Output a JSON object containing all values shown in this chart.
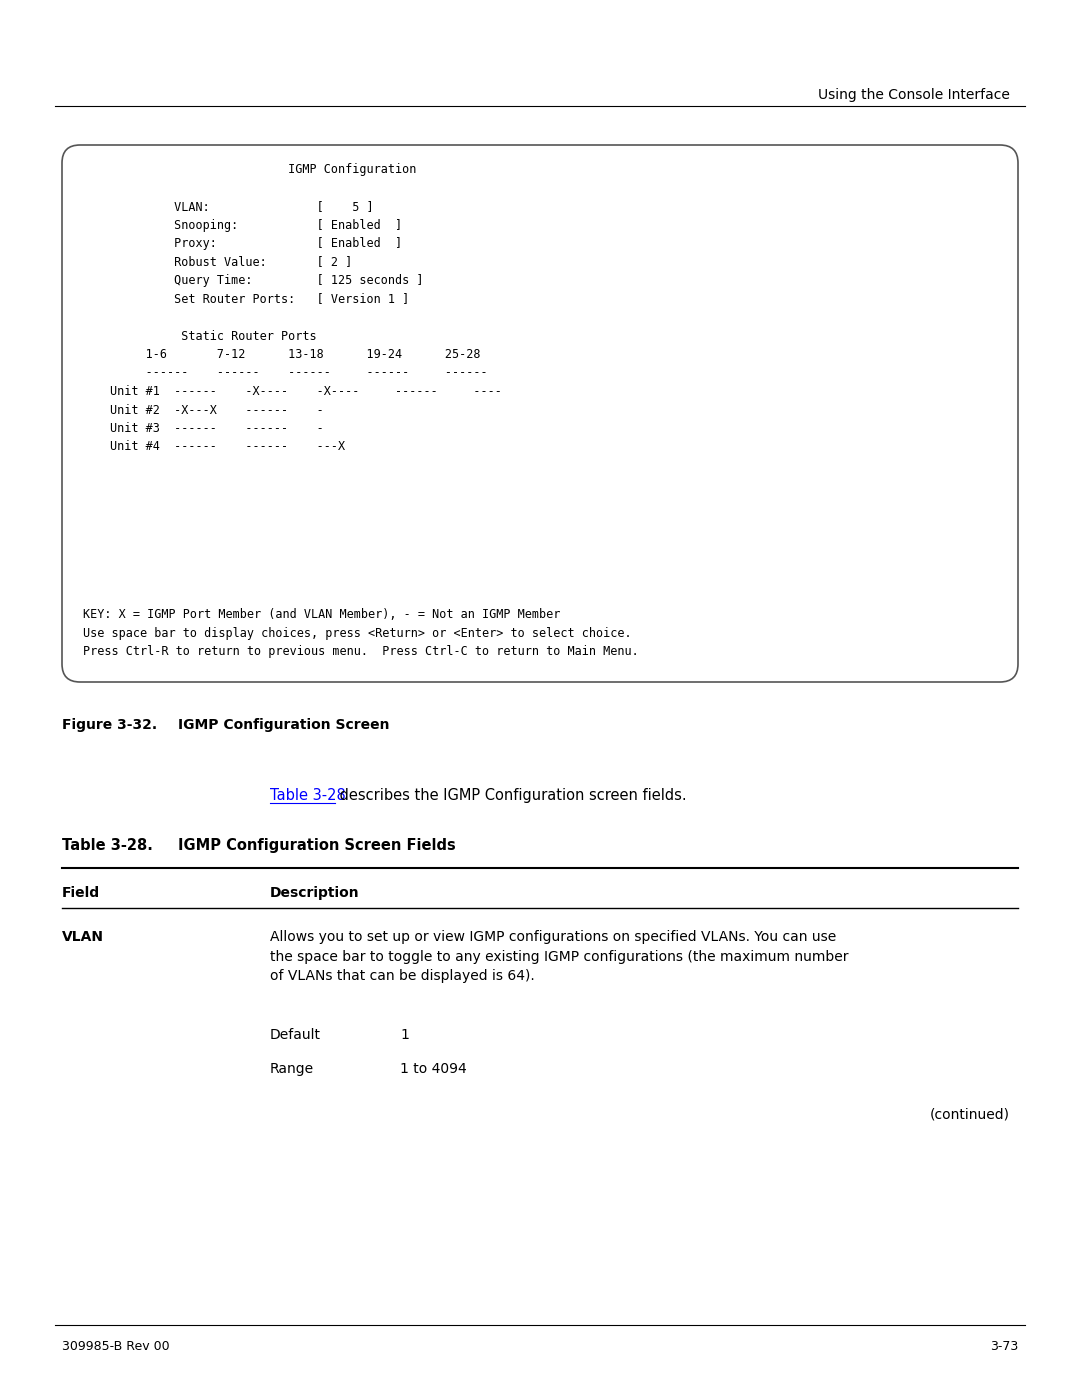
{
  "page_header_right": "Using the Console Interface",
  "figure_caption_bold": "Figure 3-32.",
  "figure_caption_text": "IGMP Configuration Screen",
  "link_text": "Table 3-28",
  "link_color": "#0000FF",
  "description_text": " describes the IGMP Configuration screen fields.",
  "table_title_bold": "Table 3-28.",
  "table_title_text": "IGMP Configuration Screen Fields",
  "table_col1_header": "Field",
  "table_col2_header": "Description",
  "vlan_field": "VLAN",
  "vlan_desc_line1": "Allows you to set up or view IGMP configurations on specified VLANs. You can use",
  "vlan_desc_line2": "the space bar to toggle to any existing IGMP configurations (the maximum number",
  "vlan_desc_line3": "of VLANs that can be displayed is 64).",
  "default_label": "Default",
  "default_value": "1",
  "range_label": "Range",
  "range_value": "1 to 4094",
  "continued_text": "(continued)",
  "footer_left": "309985-B Rev 00",
  "footer_right": "3-73",
  "bg_color": "#ffffff",
  "text_color": "#000000",
  "mono_font": "DejaVu Sans Mono",
  "sans_font": "DejaVu Sans",
  "console_content": "                         IGMP Configuration\n\n         VLAN:               [    5 ]\n         Snooping:           [ Enabled  ]\n         Proxy:              [ Enabled  ]\n         Robust Value:       [ 2 ]\n         Query Time:         [ 125 seconds ]\n         Set Router Ports:   [ Version 1 ]\n\n          Static Router Ports\n     1-6       7-12      13-18      19-24      25-28\n     ------    ------    ------     ------     ------\nUnit #1  ------    -X----    -X----     ------     ----\nUnit #2  -X---X    ------    -\nUnit #3  ------    ------    -\nUnit #4  ------    ------    ---X",
  "key_text": "KEY: X = IGMP Port Member (and VLAN Member), - = Not an IGMP Member\nUse space bar to display choices, press <Return> or <Enter> to select choice.\nPress Ctrl-R to return to previous menu.  Press Ctrl-C to return to Main Menu."
}
